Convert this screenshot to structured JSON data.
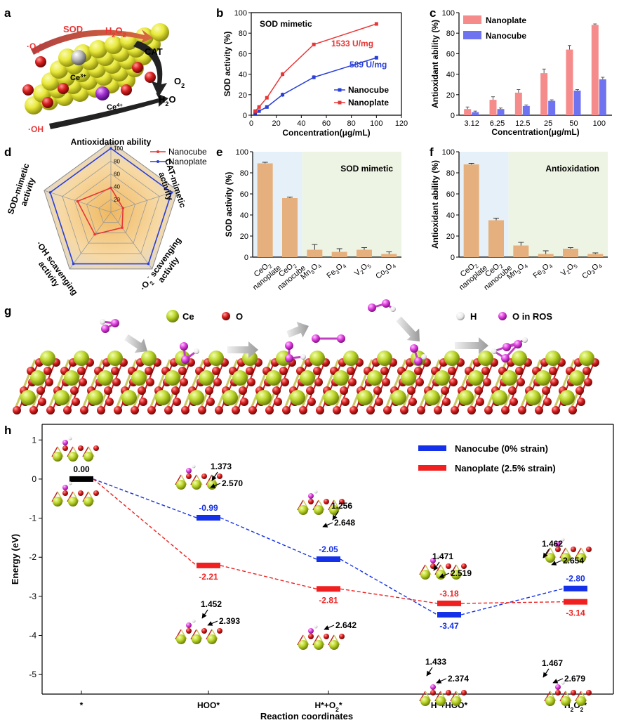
{
  "colors": {
    "red": "#e83535",
    "blue": "#2a3fd6",
    "salmon": "#f58b8b",
    "periwinkle": "#6f73f0",
    "tan": "#e5b07e",
    "ce": "#c8dc2a",
    "o": "#d81d1d",
    "ros": "#e040e0"
  },
  "panel_labels": [
    "a",
    "b",
    "c",
    "d",
    "e",
    "f",
    "g",
    "h"
  ],
  "chart_data": [
    {
      "id": "a",
      "type": "other",
      "labels": {
        "sod": "SOD",
        "h2o2_pre": "H",
        "h2o2_sub1": "2",
        "h2o2_mid": "O",
        "h2o2_sub2": "2",
        "o2r_pre": "·O",
        "o2r_sub": "2",
        "o2r_sup": "-",
        "cat": "CAT",
        "o2_pre": "O",
        "o2_sub": "2",
        "h2o_pre": "H",
        "h2o_sub": "2",
        "h2o_post": "O",
        "oh": "·OH",
        "ce3_pre": "Ce",
        "ce3_sup": "3+",
        "ce4_pre": "Ce",
        "ce4_sup": "4+"
      }
    },
    {
      "id": "b",
      "type": "line",
      "title": "SOD mimetic",
      "xlabel": "Concentration(μg/mL)",
      "ylabel": "SOD activity (%)",
      "xlim": [
        0,
        120
      ],
      "ylim": [
        0,
        100
      ],
      "xticks": [
        0,
        20,
        40,
        60,
        80,
        100,
        120
      ],
      "yticks": [
        0,
        20,
        40,
        60,
        80,
        100
      ],
      "series": [
        {
          "name": "Nanocube",
          "color": "#2a3fd6",
          "x": [
            3.12,
            6.25,
            12.5,
            25,
            50,
            100
          ],
          "y": [
            2,
            4,
            8,
            20,
            37,
            56
          ],
          "err": [
            1,
            1,
            1,
            2,
            2,
            1
          ]
        },
        {
          "name": "Nanoplate",
          "color": "#e83535",
          "x": [
            3.12,
            6.25,
            12.5,
            25,
            50,
            100
          ],
          "y": [
            4,
            8,
            17,
            40,
            69,
            89
          ],
          "err": [
            1,
            1,
            1,
            2,
            1,
            1
          ]
        }
      ],
      "annotations": [
        {
          "text": "1533 U/mg",
          "color": "#e83535"
        },
        {
          "text": "589 U/mg",
          "color": "#2a3fd6"
        }
      ]
    },
    {
      "id": "c",
      "type": "bar",
      "xlabel": "Concentration(μg/mL)",
      "ylabel": "Antioxidant ability (%)",
      "ylim": [
        0,
        100
      ],
      "yticks": [
        0,
        20,
        40,
        60,
        80,
        100
      ],
      "categories": [
        "3.12",
        "6.25",
        "12.5",
        "25",
        "50",
        "100"
      ],
      "series": [
        {
          "name": "Nanoplate",
          "color": "#f58b8b",
          "values": [
            6,
            15,
            22,
            41,
            64,
            88
          ],
          "err": [
            2,
            3,
            3,
            4,
            4,
            1
          ]
        },
        {
          "name": "Nanocube",
          "color": "#6f73f0",
          "values": [
            3,
            6,
            9,
            14,
            24,
            35
          ],
          "err": [
            1,
            1,
            1,
            1,
            1,
            2
          ]
        }
      ],
      "legend": "top-left"
    },
    {
      "id": "d",
      "type": "radar",
      "axes": [
        {
          "label": [
            "Antioxidation ability"
          ]
        },
        {
          "label": [
            "CAT-mimetic",
            "activity"
          ]
        },
        {
          "label": [
            "·O",
            "2",
            "-",
            "scavenging activity"
          ]
        },
        {
          "label": [
            "·OH scavenging",
            "activity"
          ]
        },
        {
          "label": [
            "SOD-mimetic",
            "activity"
          ]
        }
      ],
      "rticks": [
        20,
        40,
        60,
        80,
        100
      ],
      "rmax": 110,
      "series": [
        {
          "name": "Nanocube",
          "color": "#e83535",
          "values": [
            38,
            20,
            30,
            43,
            55
          ]
        },
        {
          "name": "Nanoplate",
          "color": "#2a3fd6",
          "values": [
            100,
            100,
            100,
            100,
            100
          ]
        }
      ]
    },
    {
      "id": "e",
      "type": "bar",
      "title": "SOD mimetic",
      "ylabel": "SOD activity (%)",
      "ylim": [
        0,
        100
      ],
      "yticks": [
        0,
        20,
        40,
        60,
        80,
        100
      ],
      "categories": [
        {
          "a": "CeO",
          "s": "2",
          "b": "nanoplate"
        },
        {
          "a": "CeO",
          "s": "2",
          "b": "nanocube"
        },
        {
          "a": "Mn",
          "s": "3",
          "c": "O",
          "t": "4"
        },
        {
          "a": "Fe",
          "s": "3",
          "c": "O",
          "t": "4"
        },
        {
          "a": "V",
          "s": "2",
          "c": "O",
          "t": "5"
        },
        {
          "a": "Co",
          "s": "3",
          "c": "O",
          "t": "4"
        }
      ],
      "values": [
        89,
        56,
        7,
        5,
        7,
        3
      ],
      "err": [
        1,
        1,
        5,
        3,
        2,
        2
      ],
      "color": "#e5b07e"
    },
    {
      "id": "f",
      "type": "bar",
      "title": "Antioxidation",
      "ylabel": "Antioxidant ability (%)",
      "ylim": [
        0,
        100
      ],
      "yticks": [
        0,
        20,
        40,
        60,
        80,
        100
      ],
      "categories": [
        {
          "a": "CeO",
          "s": "2",
          "b": "nanoplate"
        },
        {
          "a": "CeO",
          "s": "2",
          "b": "nanocube"
        },
        {
          "a": "Mn",
          "s": "3",
          "c": "O",
          "t": "4"
        },
        {
          "a": "Fe",
          "s": "3",
          "c": "O",
          "t": "4"
        },
        {
          "a": "V",
          "s": "2",
          "c": "O",
          "t": "5"
        },
        {
          "a": "Co",
          "s": "3",
          "c": "O",
          "t": "4"
        }
      ],
      "values": [
        88,
        35,
        11,
        3,
        8,
        3
      ],
      "err": [
        1,
        2,
        3,
        3,
        1,
        1
      ],
      "color": "#e5b07e"
    },
    {
      "id": "g",
      "type": "other",
      "legend": [
        {
          "label": "Ce",
          "color": "#c8dc2a"
        },
        {
          "label": "O",
          "color": "#d81d1d"
        },
        {
          "label": "H",
          "color": "#ffffff"
        },
        {
          "label": "O in ROS",
          "color": "#e040e0"
        }
      ]
    },
    {
      "id": "h",
      "type": "line",
      "xlabel": "Reaction coordinates",
      "ylabel": "Energy (eV)",
      "ylim": [
        -5.5,
        1.4
      ],
      "yticks": [
        1,
        0,
        -1,
        -2,
        -3,
        -4,
        -5
      ],
      "categories": [
        {
          "a": "*"
        },
        {
          "a": "HOO*"
        },
        {
          "a": "H*+O",
          "s": "2",
          "b": "*"
        },
        {
          "a": "H*+HOO*"
        },
        {
          "a": "H",
          "s": "2",
          "b": "O",
          "t": "2",
          "c": "*"
        }
      ],
      "series": [
        {
          "name": "Nanocube (0% strain)",
          "color": "#1430e8",
          "values": [
            0,
            -0.99,
            -2.05,
            -3.47,
            -2.8
          ],
          "labels": [
            "0.00",
            "-0.99",
            "-2.05",
            "-3.47",
            "-2.80"
          ]
        },
        {
          "name": "Nanoplate (2.5% strain)",
          "color": "#f02020",
          "values": [
            0,
            -2.21,
            -2.81,
            -3.18,
            -3.14
          ],
          "labels": [
            "",
            "-2.21",
            "-2.81",
            "-3.18",
            "-3.14"
          ]
        }
      ],
      "bond_labels": [
        {
          "a": "1.373",
          "b": "2.570"
        },
        {
          "a": "1.452",
          "b": "2.393"
        },
        {
          "a": "1.256",
          "b": "2.648"
        },
        {
          "b": "2.642"
        },
        {
          "a": "1.471",
          "b": "2.519"
        },
        {
          "a": "1.433",
          "b": "2.374"
        },
        {
          "a": "1.462",
          "b": "2.654"
        },
        {
          "a": "1.467",
          "b": "2.679"
        }
      ]
    }
  ]
}
